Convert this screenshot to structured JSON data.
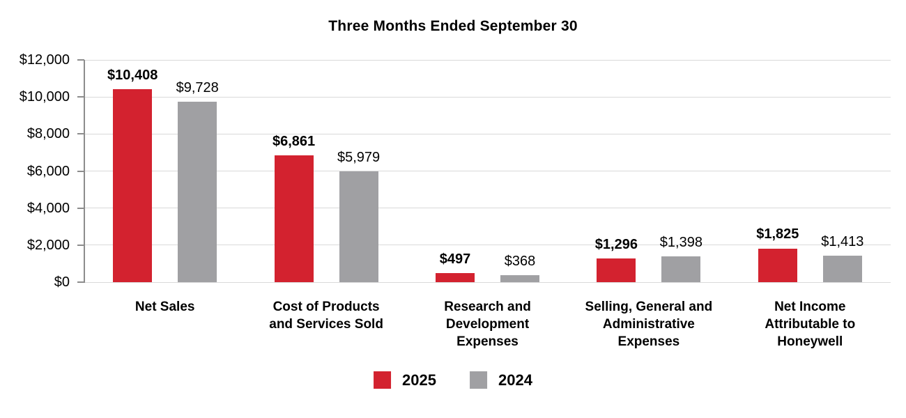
{
  "chart_data": {
    "type": "bar",
    "title": "Three Months Ended September 30",
    "categories": [
      "Net Sales",
      "Cost of Products\nand Services Sold",
      "Research and\nDevelopment\nExpenses",
      "Selling, General and\nAdministrative\nExpenses",
      "Net Income\nAttributable to\nHoneywell"
    ],
    "series": [
      {
        "name": "2025",
        "color": "#d3222f",
        "values": [
          10408,
          6861,
          497,
          1296,
          1825
        ],
        "labels": [
          "$10,408",
          "$6,861",
          "$497",
          "$1,296",
          "$1,825"
        ],
        "label_bold": true
      },
      {
        "name": "2024",
        "color": "#a0a0a3",
        "values": [
          9728,
          5979,
          368,
          1398,
          1413
        ],
        "labels": [
          "$9,728",
          "$5,979",
          "$368",
          "$1,398",
          "$1,413"
        ],
        "label_bold": false
      }
    ],
    "y_axis": {
      "min": 0,
      "max": 12000,
      "step": 2000,
      "tick_labels": [
        "$0",
        "$2,000",
        "$4,000",
        "$6,000",
        "$8,000",
        "$10,000",
        "$12,000"
      ]
    },
    "grid": true,
    "legend_position": "bottom"
  }
}
